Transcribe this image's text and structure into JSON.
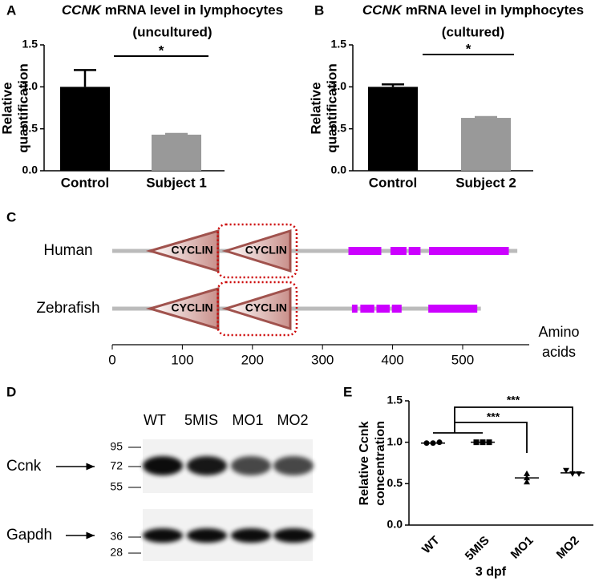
{
  "panel_labels": [
    "A",
    "B",
    "C",
    "D",
    "E"
  ],
  "chart_data": [
    {
      "type": "bar",
      "title_italic": "CCNK",
      "title": "mRNA level in lymphocytes",
      "subtitle": "(uncultured)",
      "ylabel": [
        "Relative",
        "quantification"
      ],
      "categories": [
        "Control",
        "Subject 1"
      ],
      "values": [
        1.0,
        0.43
      ],
      "errors": [
        0.2,
        0.01
      ],
      "colors": [
        "#000000",
        "#999999"
      ],
      "ylim": [
        0,
        1.5
      ],
      "yticks": [
        {
          "value": 0,
          "label": "0.0"
        },
        {
          "value": 0.5,
          "label": "0.5"
        },
        {
          "value": 1,
          "label": "1.0"
        },
        {
          "value": 1.5,
          "label": "1.5"
        }
      ],
      "annotations": [
        "*"
      ]
    },
    {
      "type": "bar",
      "title_italic": "CCNK",
      "title": "mRNA level in lymphocytes",
      "subtitle": "(cultured)",
      "ylabel": [
        "Relative",
        "quantification"
      ],
      "categories": [
        "Control",
        "Subject 2"
      ],
      "values": [
        1.0,
        0.63
      ],
      "errors": [
        0.03,
        0.01
      ],
      "colors": [
        "#000000",
        "#999999"
      ],
      "ylim": [
        0,
        1.5
      ],
      "yticks": [
        {
          "value": 0,
          "label": "0.0"
        },
        {
          "value": 0.5,
          "label": "0.5"
        },
        {
          "value": 1,
          "label": "1.0"
        },
        {
          "value": 1.5,
          "label": "1.5"
        }
      ],
      "annotations": [
        "*"
      ]
    },
    {
      "type": "domains",
      "xlabel": [
        "Amino",
        "acids"
      ],
      "xlim": [
        0,
        595
      ],
      "xticks": [
        0,
        100,
        200,
        300,
        400,
        500
      ],
      "domain_color": "#a0524d",
      "region_color": "#cc00ff",
      "series": [
        {
          "name": "Human",
          "length": 578,
          "domains": [
            {
              "label": "CYCLIN",
              "start": 54,
              "end": 151
            },
            {
              "label": "CYCLIN",
              "start": 162,
              "end": 254
            }
          ],
          "regions": [
            [
              337,
              385
            ],
            [
              397,
              421
            ],
            [
              423,
              441
            ],
            [
              452,
              567
            ]
          ]
        },
        {
          "name": "Zebrafish",
          "length": 526,
          "domains": [
            {
              "label": "CYCLIN",
              "start": 54,
              "end": 151
            },
            {
              "label": "CYCLIN",
              "start": 162,
              "end": 254
            }
          ],
          "regions": [
            [
              342,
              351
            ],
            [
              354,
              375
            ],
            [
              377,
              397
            ],
            [
              399,
              414
            ],
            [
              451,
              522
            ]
          ]
        }
      ]
    },
    {
      "type": "dotplot",
      "ylabel": [
        "Relative Ccnk",
        "concentration"
      ],
      "xlabel": "3 dpf",
      "categories": [
        "WT",
        "5MIS",
        "MO1",
        "MO2"
      ],
      "markers": [
        "circle",
        "square",
        "triangle-up",
        "triangle-down"
      ],
      "points": [
        [
          0.99,
          0.99,
          1.0
        ],
        [
          1.0,
          1.0,
          1.0
        ],
        [
          0.62,
          0.57,
          0.52
        ],
        [
          0.66,
          0.62,
          0.62
        ]
      ],
      "means": [
        0.99,
        1.0,
        0.57,
        0.63
      ],
      "errors": [
        0.01,
        0.0,
        0.05,
        0.02
      ],
      "ylim": [
        0,
        1.5
      ],
      "yticks": [
        {
          "value": 0,
          "label": "0.0"
        },
        {
          "value": 0.5,
          "label": "0.5"
        },
        {
          "value": 1,
          "label": "1.0"
        },
        {
          "value": 1.5,
          "label": "1.5"
        }
      ],
      "annotations": [
        "***",
        "***"
      ]
    }
  ],
  "blot": {
    "lanes": [
      "WT",
      "5MIS",
      "MO1",
      "MO2"
    ],
    "markers": [
      "95",
      "72",
      "55",
      "36",
      "28"
    ],
    "bands": [
      "Ccnk",
      "Gapdh"
    ]
  }
}
